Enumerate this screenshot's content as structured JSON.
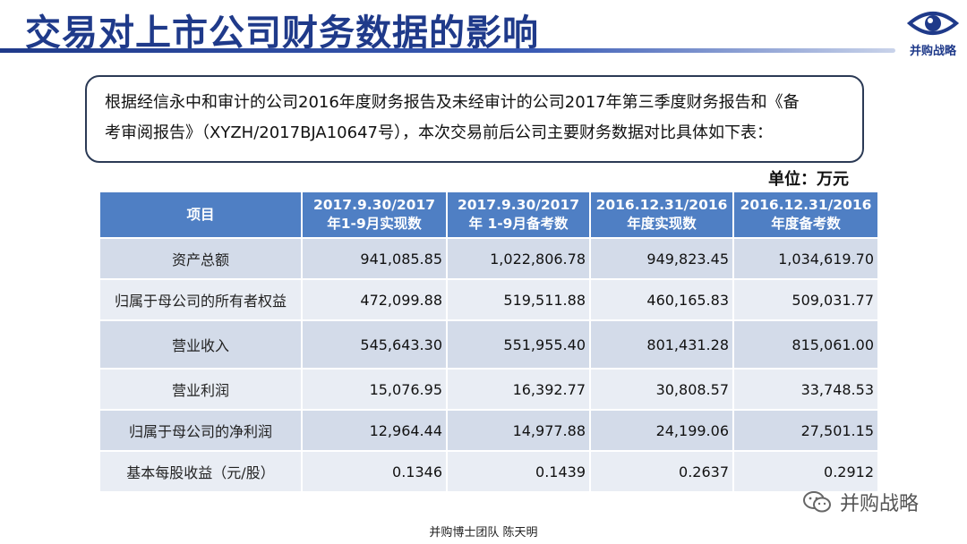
{
  "slide": {
    "title": "交易对上市公司财务数据的影响",
    "logo_text": "并购战略",
    "intro_line1": "根据经信永中和审计的公司2016年度财务报告及未经审计的公司2017年第三季度财务报告和《备",
    "intro_line2": "考审阅报告》（XYZH/2017BJA10647号），本次交易前后公司主要财务数据对比具体如下表：",
    "unit": "单位：万元",
    "watermark": "并购战略",
    "footer": "并购博士团队 陈天明",
    "accent_color": "#1f3a8a",
    "header_color": "#4f7fc4"
  },
  "table": {
    "headers": [
      {
        "l1": "项目",
        "l2": ""
      },
      {
        "l1": "2017.9.30/2017",
        "l2": "年1-9月实现数"
      },
      {
        "l1": "2017.9.30/2017",
        "l2": "年 1-9月备考数"
      },
      {
        "l1": "2016.12.31/2016",
        "l2": "年度实现数"
      },
      {
        "l1": "2016.12.31/2016",
        "l2": "年度备考数"
      }
    ],
    "rows": [
      {
        "item": "资产总额",
        "v1": "941,085.85",
        "v2": "1,022,806.78",
        "v3": "949,823.45",
        "v4": "1,034,619.70"
      },
      {
        "item": "归属于母公司的所有者权益",
        "v1": "472,099.88",
        "v2": "519,511.88",
        "v3": "460,165.83",
        "v4": "509,031.77"
      },
      {
        "item": "营业收入",
        "v1": "545,643.30",
        "v2": "551,955.40",
        "v3": "801,431.28",
        "v4": "815,061.00"
      },
      {
        "item": "营业利润",
        "v1": "15,076.95",
        "v2": "16,392.77",
        "v3": "30,808.57",
        "v4": "33,748.53"
      },
      {
        "item": "归属于母公司的净利润",
        "v1": "12,964.44",
        "v2": "14,977.88",
        "v3": "24,199.06",
        "v4": "27,501.15"
      },
      {
        "item": "基本每股收益（元/股）",
        "v1": "0.1346",
        "v2": "0.1439",
        "v3": "0.2637",
        "v4": "0.2912"
      }
    ]
  }
}
